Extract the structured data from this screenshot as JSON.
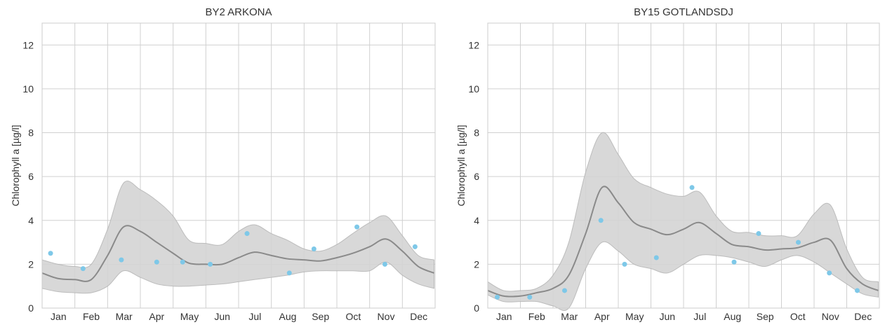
{
  "chart_data": [
    {
      "type": "line",
      "title": "BY2 ARKONA",
      "ylabel": "Chlorophyll a [µg/l]",
      "xlabel": "",
      "ylim": [
        0,
        13
      ],
      "yticks": [
        0,
        2,
        4,
        6,
        8,
        10,
        12
      ],
      "xticks": [
        "Jan",
        "Feb",
        "Mar",
        "Apr",
        "May",
        "Jun",
        "Jul",
        "Aug",
        "Sep",
        "Oct",
        "Nov",
        "Dec"
      ],
      "grid": true,
      "colors": {
        "points": "#7ec8e8",
        "line": "#8a8a8a",
        "band": "#d4d4d4"
      },
      "curve": {
        "dates": [
          "Jan 1",
          "Jan 16",
          "Feb 1",
          "Feb 15",
          "Mar 1",
          "Mar 16",
          "Apr 1",
          "Apr 16",
          "May 1",
          "May 16",
          "Jun 1",
          "Jun 16",
          "Jul 1",
          "Jul 16",
          "Aug 1",
          "Aug 16",
          "Sep 1",
          "Sep 16",
          "Oct 1",
          "Oct 16",
          "Nov 1",
          "Nov 16",
          "Dec 1",
          "Dec 16",
          "Dec 31"
        ],
        "mean": [
          1.6,
          1.35,
          1.3,
          1.3,
          2.4,
          3.7,
          3.5,
          3.0,
          2.5,
          2.05,
          2.0,
          2.0,
          2.3,
          2.55,
          2.4,
          2.25,
          2.2,
          2.15,
          2.3,
          2.5,
          2.8,
          3.15,
          2.6,
          1.9,
          1.6
        ],
        "lower": [
          0.9,
          0.75,
          0.7,
          0.7,
          1.0,
          1.7,
          1.4,
          1.1,
          1.0,
          1.0,
          1.05,
          1.1,
          1.2,
          1.3,
          1.4,
          1.5,
          1.65,
          1.7,
          1.7,
          1.7,
          1.7,
          2.1,
          1.5,
          1.1,
          0.9
        ],
        "upper": [
          2.2,
          2.0,
          1.9,
          2.0,
          3.6,
          5.7,
          5.4,
          4.9,
          4.2,
          3.1,
          2.95,
          2.9,
          3.5,
          3.8,
          3.4,
          3.1,
          2.7,
          2.6,
          2.9,
          3.4,
          3.9,
          4.2,
          3.3,
          2.4,
          2.2
        ]
      },
      "points": {
        "dates": [
          "Jan 9",
          "Feb 8",
          "Mar 14",
          "Apr 16",
          "May 10",
          "Jun 5",
          "Jul 9",
          "Aug 18",
          "Sep 10",
          "Oct 20",
          "Nov 15",
          "Dec 13"
        ],
        "values": [
          2.5,
          1.8,
          2.2,
          2.1,
          2.1,
          2.0,
          3.4,
          1.6,
          2.7,
          3.7,
          2.0,
          2.8
        ]
      }
    },
    {
      "type": "line",
      "title": "BY15 GOTLANDSDJ",
      "ylabel": "Chlorophyll a [µg/l]",
      "xlabel": "",
      "ylim": [
        0,
        13
      ],
      "yticks": [
        0,
        2,
        4,
        6,
        8,
        10,
        12
      ],
      "xticks": [
        "Jan",
        "Feb",
        "Mar",
        "Apr",
        "May",
        "Jun",
        "Jul",
        "Aug",
        "Sep",
        "Oct",
        "Nov",
        "Dec"
      ],
      "grid": true,
      "colors": {
        "points": "#7ec8e8",
        "line": "#8a8a8a",
        "band": "#d4d4d4"
      },
      "curve": {
        "dates": [
          "Jan 1",
          "Jan 16",
          "Feb 1",
          "Feb 15",
          "Mar 1",
          "Mar 16",
          "Apr 1",
          "Apr 16",
          "May 1",
          "May 16",
          "Jun 1",
          "Jun 16",
          "Jul 1",
          "Jul 16",
          "Aug 1",
          "Aug 16",
          "Sep 1",
          "Sep 16",
          "Oct 1",
          "Oct 16",
          "Nov 1",
          "Nov 16",
          "Dec 1",
          "Dec 16",
          "Dec 31"
        ],
        "mean": [
          0.8,
          0.55,
          0.55,
          0.7,
          0.9,
          1.5,
          3.4,
          5.5,
          4.8,
          3.9,
          3.6,
          3.35,
          3.6,
          3.9,
          3.4,
          2.9,
          2.8,
          2.65,
          2.7,
          2.75,
          3.0,
          3.1,
          1.8,
          1.1,
          0.8
        ],
        "lower": [
          0.6,
          0.3,
          0.3,
          0.3,
          0.1,
          0.0,
          1.8,
          3.0,
          2.6,
          2.0,
          1.8,
          1.6,
          2.0,
          2.4,
          2.4,
          2.3,
          2.1,
          1.9,
          2.2,
          2.4,
          2.1,
          1.6,
          1.1,
          0.65,
          0.5
        ],
        "upper": [
          1.2,
          0.8,
          0.8,
          0.9,
          1.5,
          3.0,
          6.2,
          8.0,
          7.0,
          5.9,
          5.5,
          5.2,
          5.1,
          5.3,
          4.2,
          3.5,
          3.45,
          3.3,
          3.3,
          3.3,
          4.3,
          4.7,
          2.7,
          1.4,
          1.2
        ]
      },
      "points": {
        "dates": [
          "Jan 10",
          "Feb 9",
          "Mar 12",
          "Apr 15",
          "May 7",
          "Jun 6",
          "Jul 9",
          "Aug 18",
          "Sep 10",
          "Oct 17",
          "Nov 15",
          "Dec 11"
        ],
        "values": [
          0.5,
          0.5,
          0.8,
          4.0,
          2.0,
          2.3,
          5.5,
          2.1,
          3.4,
          3.0,
          1.6,
          0.8
        ]
      }
    }
  ]
}
